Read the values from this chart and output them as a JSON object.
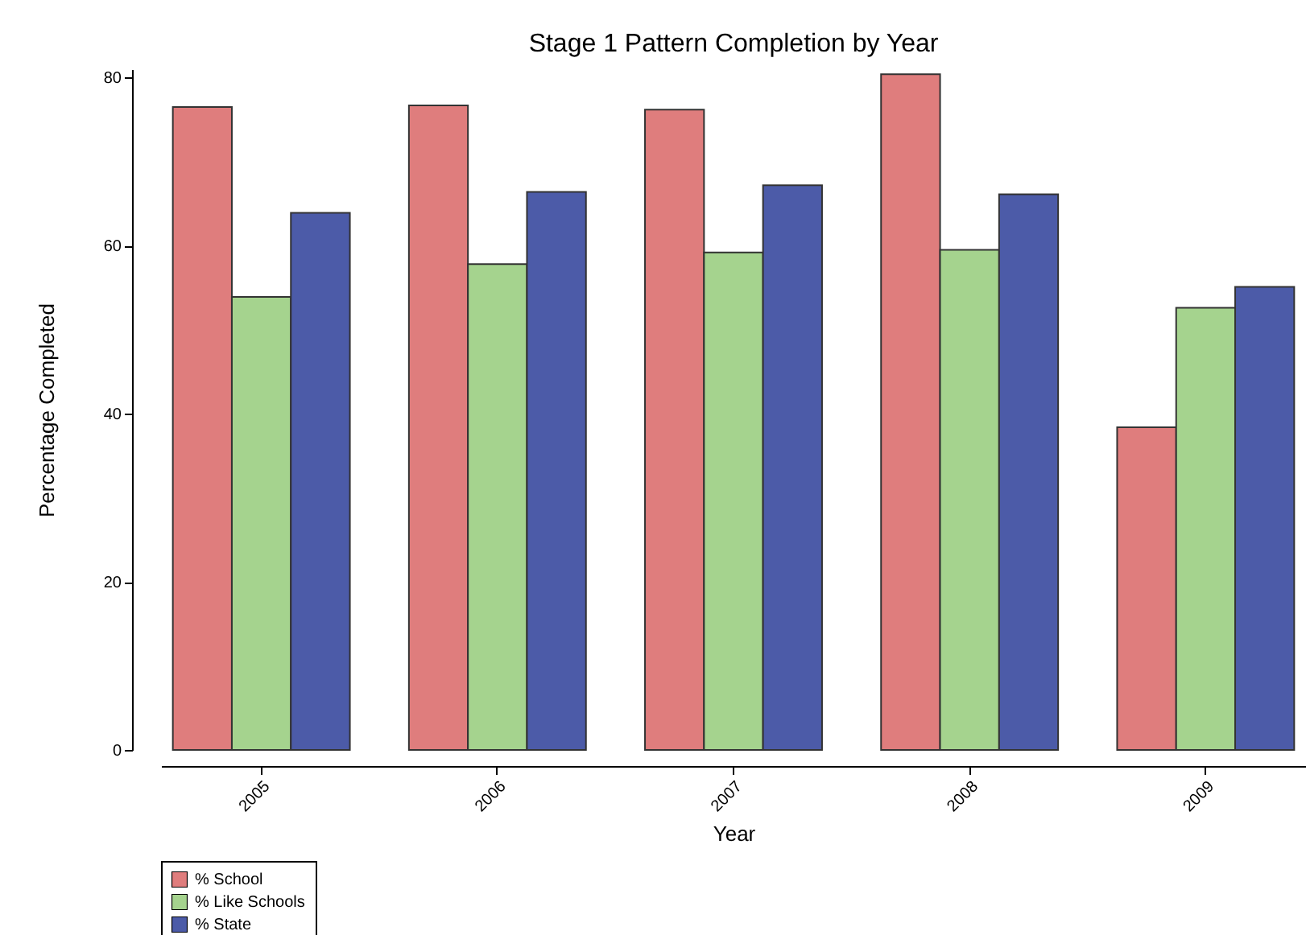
{
  "chart_data": {
    "type": "bar",
    "title": "Stage 1 Pattern Completion by Year",
    "xlabel": "Year",
    "ylabel": "Percentage Completed",
    "categories": [
      "2005",
      "2006",
      "2007",
      "2008",
      "2009"
    ],
    "series": [
      {
        "name": "% School",
        "color": "#df7d7d",
        "values": [
          76.5,
          76.7,
          76.2,
          80.4,
          38.4
        ]
      },
      {
        "name": "% Like Schools",
        "color": "#a5d38e",
        "values": [
          53.9,
          57.8,
          59.2,
          59.5,
          52.6
        ]
      },
      {
        "name": "% State",
        "color": "#4c5ba8",
        "values": [
          63.9,
          66.4,
          67.2,
          66.1,
          55.1
        ]
      }
    ],
    "ylim": [
      0,
      81
    ],
    "yticks": [
      0,
      20,
      40,
      60,
      80
    ],
    "grid": false,
    "legend": "bottom"
  }
}
